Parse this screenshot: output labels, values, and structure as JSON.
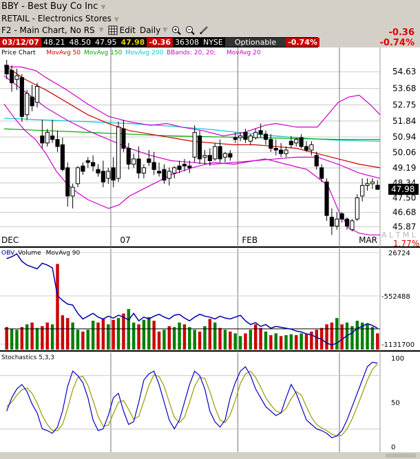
{
  "header": {
    "title": "BBY - Best Buy Co Inc",
    "sector": "RETAIL - Electronics Stores",
    "chart_label": "F2 - Main Chart, No RS",
    "edit_label": "Edit",
    "period_label": "Daily"
  },
  "quote": {
    "date": "03/12/07",
    "open": "48.21",
    "high": "48.50",
    "low": "47.95",
    "last": "47.98",
    "change": "-0.36",
    "volume": "36308",
    "exchange": "NYSE",
    "optionable": "Optionable",
    "pct": "-0.74%",
    "big_change": "-0.36",
    "big_pct": "-0.74%"
  },
  "colors": {
    "up": "#008000",
    "down": "#cc0000",
    "ma50": "#cc0000",
    "ma150": "#00aa00",
    "ma200": "#00cccc",
    "bbands": "#cc00cc",
    "obv": "#0000aa",
    "stoch_k": "#0000cc",
    "stoch_d": "#999900"
  },
  "chart_data": [
    {
      "type": "candlestick",
      "panel": "price",
      "legend": [
        {
          "label": "Price Chart",
          "color": "#000000"
        },
        {
          "label": "MovAvg 50",
          "color": "#cc0000"
        },
        {
          "label": "MovAvg 150",
          "color": "#00aa00"
        },
        {
          "label": "MovAvg 200",
          "color": "#00cccc"
        },
        {
          "label": "BBands: 20, 20;",
          "color": "#cc00cc"
        },
        {
          "label": "MovAvg 20",
          "color": "#cc00cc"
        }
      ],
      "y_ticks": [
        54.63,
        53.68,
        52.75,
        51.84,
        50.94,
        50.06,
        49.19,
        48.34,
        47.5,
        46.68,
        45.87
      ],
      "current_price_label": "47.98",
      "x_labels": [
        "DEC",
        "07",
        "FEB",
        "MAR"
      ],
      "side_note": "1.77%",
      "side_letters": "A L T M L",
      "ylim": [
        45.3,
        55.3
      ],
      "candles": [
        [
          55.0,
          55.3,
          54.2,
          54.5
        ],
        [
          54.7,
          55.0,
          53.5,
          54.0
        ],
        [
          54.2,
          54.8,
          53.6,
          54.4
        ],
        [
          54.3,
          54.5,
          51.8,
          52.1
        ],
        [
          52.2,
          53.6,
          51.9,
          53.4
        ],
        [
          53.2,
          53.9,
          52.4,
          52.7
        ],
        [
          52.9,
          54.0,
          52.6,
          53.8
        ],
        [
          51.0,
          51.9,
          50.3,
          50.6
        ],
        [
          50.6,
          51.4,
          50.4,
          51.2
        ],
        [
          51.0,
          51.9,
          50.6,
          50.8
        ],
        [
          50.8,
          51.3,
          50.1,
          50.4
        ],
        [
          50.5,
          50.9,
          49.0,
          49.1
        ],
        [
          49.2,
          49.5,
          47.0,
          47.6
        ],
        [
          47.6,
          48.3,
          46.9,
          48.1
        ],
        [
          48.3,
          49.3,
          48.1,
          49.2
        ],
        [
          49.3,
          49.5,
          48.8,
          49.0
        ],
        [
          49.6,
          49.8,
          49.2,
          49.5
        ],
        [
          49.5,
          49.9,
          49.0,
          49.3
        ],
        [
          49.1,
          49.4,
          48.7,
          48.9
        ],
        [
          49.0,
          49.6,
          48.1,
          48.4
        ],
        [
          48.6,
          49.2,
          48.3,
          49.0
        ],
        [
          49.2,
          49.8,
          48.1,
          48.5
        ],
        [
          48.6,
          51.8,
          48.4,
          51.5
        ],
        [
          51.4,
          51.9,
          50.1,
          50.3
        ],
        [
          50.3,
          50.6,
          49.1,
          49.4
        ],
        [
          49.4,
          50.0,
          49.2,
          49.7
        ],
        [
          49.7,
          50.4,
          48.6,
          48.9
        ],
        [
          48.9,
          49.4,
          48.6,
          49.2
        ],
        [
          49.7,
          50.2,
          49.3,
          49.5
        ],
        [
          49.5,
          50.1,
          48.8,
          49.1
        ],
        [
          49.0,
          49.5,
          48.7,
          48.9
        ],
        [
          49.1,
          49.4,
          48.3,
          48.5
        ],
        [
          48.6,
          49.2,
          48.2,
          49.0
        ],
        [
          48.9,
          49.3,
          48.6,
          49.2
        ],
        [
          49.3,
          49.6,
          48.9,
          49.1
        ],
        [
          49.4,
          49.7,
          49.0,
          49.3
        ],
        [
          49.3,
          49.6,
          48.9,
          49.2
        ],
        [
          49.8,
          51.6,
          49.5,
          51.2
        ],
        [
          51.0,
          51.3,
          49.4,
          49.7
        ],
        [
          49.8,
          50.2,
          49.4,
          49.9
        ],
        [
          49.9,
          50.3,
          49.3,
          49.6
        ],
        [
          49.7,
          50.6,
          49.6,
          50.4
        ],
        [
          50.4,
          50.8,
          49.5,
          49.7
        ],
        [
          49.8,
          50.1,
          49.5,
          50.0
        ],
        [
          50.0,
          50.2,
          49.6,
          49.8
        ],
        [
          50.9,
          51.2,
          50.6,
          50.8
        ],
        [
          50.9,
          51.2,
          50.7,
          51.0
        ],
        [
          51.2,
          51.4,
          50.6,
          50.8
        ],
        [
          50.7,
          51.1,
          50.5,
          51.0
        ],
        [
          50.9,
          51.4,
          50.8,
          51.2
        ],
        [
          51.3,
          51.7,
          50.9,
          51.1
        ],
        [
          51.1,
          51.3,
          50.5,
          50.8
        ],
        [
          50.8,
          51.1,
          50.1,
          50.3
        ],
        [
          50.3,
          50.8,
          49.9,
          50.2
        ],
        [
          50.2,
          50.6,
          49.8,
          50.0
        ],
        [
          50.0,
          50.4,
          49.8,
          50.2
        ],
        [
          50.7,
          51.0,
          50.3,
          50.5
        ],
        [
          50.6,
          50.9,
          50.4,
          50.8
        ],
        [
          50.9,
          51.1,
          50.3,
          50.4
        ],
        [
          50.4,
          50.7,
          50.1,
          50.2
        ],
        [
          50.2,
          50.7,
          49.9,
          50.5
        ],
        [
          49.9,
          50.1,
          49.1,
          49.3
        ],
        [
          49.2,
          49.4,
          48.4,
          48.6
        ],
        [
          48.4,
          48.6,
          46.2,
          46.5
        ],
        [
          46.4,
          46.9,
          45.4,
          45.9
        ],
        [
          45.9,
          46.7,
          45.7,
          46.3
        ],
        [
          46.6,
          46.7,
          46.1,
          46.3
        ],
        [
          46.3,
          46.4,
          45.7,
          45.9
        ],
        [
          45.7,
          46.3,
          45.6,
          46.2
        ],
        [
          46.3,
          47.7,
          46.2,
          47.5
        ],
        [
          47.6,
          48.6,
          47.3,
          48.2
        ],
        [
          48.2,
          48.6,
          47.9,
          48.3
        ],
        [
          48.3,
          48.6,
          48.0,
          48.4
        ],
        [
          48.21,
          48.5,
          47.95,
          47.98
        ]
      ],
      "ma50": [
        [
          0,
          55.0
        ],
        [
          10,
          54.2
        ],
        [
          20,
          53.6
        ],
        [
          30,
          52.9
        ],
        [
          40,
          52.2
        ],
        [
          50,
          51.7
        ],
        [
          60,
          51.3
        ],
        [
          70,
          51.1
        ],
        [
          80,
          50.9
        ],
        [
          90,
          50.7
        ],
        [
          100,
          50.6
        ],
        [
          110,
          50.5
        ],
        [
          120,
          50.5
        ],
        [
          130,
          50.4
        ],
        [
          140,
          50.3
        ],
        [
          150,
          50.0
        ],
        [
          160,
          49.7
        ],
        [
          170,
          49.4
        ],
        [
          180,
          49.2
        ]
      ],
      "ma150": [
        [
          0,
          51.4
        ],
        [
          20,
          51.3
        ],
        [
          40,
          51.2
        ],
        [
          60,
          51.1
        ],
        [
          80,
          51.0
        ],
        [
          100,
          50.95
        ],
        [
          120,
          50.9
        ],
        [
          140,
          50.85
        ],
        [
          160,
          50.8
        ],
        [
          180,
          50.8
        ]
      ],
      "ma200": [
        [
          0,
          52.0
        ],
        [
          20,
          51.9
        ],
        [
          40,
          51.8
        ],
        [
          60,
          51.7
        ],
        [
          80,
          51.55
        ],
        [
          100,
          51.35
        ],
        [
          120,
          51.1
        ],
        [
          140,
          50.9
        ],
        [
          160,
          50.75
        ],
        [
          180,
          50.7
        ]
      ],
      "bb_upper": [
        [
          0,
          54.9
        ],
        [
          8,
          54.9
        ],
        [
          15,
          54.7
        ],
        [
          20,
          54.3
        ],
        [
          30,
          53.6
        ],
        [
          40,
          52.8
        ],
        [
          50,
          52.1
        ],
        [
          60,
          51.8
        ],
        [
          70,
          51.6
        ],
        [
          78,
          51.7
        ],
        [
          85,
          51.5
        ],
        [
          95,
          51.3
        ],
        [
          105,
          51.0
        ],
        [
          115,
          51.2
        ],
        [
          125,
          51.6
        ],
        [
          130,
          51.7
        ],
        [
          140,
          51.5
        ],
        [
          150,
          51.5
        ],
        [
          155,
          52.2
        ],
        [
          160,
          52.9
        ],
        [
          165,
          53.2
        ],
        [
          170,
          53.3
        ],
        [
          175,
          52.8
        ],
        [
          180,
          52.2
        ]
      ],
      "bb_lower": [
        [
          0,
          52.8
        ],
        [
          5,
          52.0
        ],
        [
          10,
          51.3
        ],
        [
          15,
          50.8
        ],
        [
          20,
          50.0
        ],
        [
          25,
          49.0
        ],
        [
          30,
          48.3
        ],
        [
          35,
          47.8
        ],
        [
          40,
          47.4
        ],
        [
          50,
          46.9
        ],
        [
          55,
          47.1
        ],
        [
          60,
          47.6
        ],
        [
          70,
          48.2
        ],
        [
          80,
          48.8
        ],
        [
          90,
          49.2
        ],
        [
          100,
          49.5
        ],
        [
          110,
          49.4
        ],
        [
          120,
          49.6
        ],
        [
          125,
          49.7
        ],
        [
          135,
          49.4
        ],
        [
          145,
          49.1
        ],
        [
          155,
          48.2
        ],
        [
          160,
          46.8
        ],
        [
          165,
          45.8
        ],
        [
          170,
          45.5
        ],
        [
          175,
          45.4
        ],
        [
          180,
          45.4
        ]
      ],
      "ma20": [
        [
          0,
          54.4
        ],
        [
          10,
          53.5
        ],
        [
          20,
          52.6
        ],
        [
          30,
          51.9
        ],
        [
          40,
          51.3
        ],
        [
          50,
          50.8
        ],
        [
          60,
          50.3
        ],
        [
          70,
          49.9
        ],
        [
          80,
          49.6
        ],
        [
          90,
          49.5
        ],
        [
          100,
          49.4
        ],
        [
          110,
          49.5
        ],
        [
          120,
          49.6
        ],
        [
          130,
          49.7
        ],
        [
          140,
          49.8
        ],
        [
          150,
          49.8
        ],
        [
          160,
          49.4
        ],
        [
          170,
          48.9
        ],
        [
          180,
          48.6
        ]
      ]
    },
    {
      "type": "bar+line",
      "panel": "obv",
      "legend": [
        {
          "label": "OBV",
          "color": "#0000aa"
        },
        {
          "label": "Volume",
          "color": "#000000"
        },
        {
          "label": "MovAvg 90",
          "color": "#000000"
        }
      ],
      "y_ticks": [
        "26724",
        "-552488",
        "-1131700"
      ],
      "volume": [
        0.25,
        0.23,
        0.22,
        0.25,
        0.28,
        0.3,
        0.24,
        0.26,
        0.3,
        0.28,
        0.95,
        0.38,
        0.35,
        0.3,
        0.22,
        0.2,
        0.22,
        0.32,
        0.3,
        0.34,
        0.28,
        0.33,
        0.35,
        0.4,
        0.45,
        0.3,
        0.28,
        0.33,
        0.36,
        0.32,
        0.2,
        0.22,
        0.26,
        0.25,
        0.3,
        0.28,
        0.25,
        0.22,
        0.2,
        0.26,
        0.34,
        0.3,
        0.24,
        0.22,
        0.2,
        0.18,
        0.15,
        0.18,
        0.22,
        0.28,
        0.24,
        0.2,
        0.16,
        0.18,
        0.15,
        0.16,
        0.17,
        0.16,
        0.18,
        0.17,
        0.2,
        0.22,
        0.24,
        0.28,
        0.3,
        0.35,
        0.28,
        0.3,
        0.26,
        0.32,
        0.3,
        0.28,
        0.25,
        0.18
      ],
      "volume_up": [
        0,
        1,
        1,
        0,
        1,
        0,
        1,
        0,
        0,
        1,
        0,
        0,
        0,
        1,
        1,
        0,
        1,
        1,
        0,
        0,
        1,
        0,
        1,
        0,
        1,
        1,
        0,
        1,
        1,
        0,
        0,
        1,
        0,
        1,
        1,
        0,
        1,
        1,
        0,
        1,
        0,
        1,
        0,
        1,
        0,
        1,
        1,
        0,
        1,
        0,
        0,
        1,
        0,
        1,
        0,
        1,
        1,
        0,
        1,
        0,
        0,
        0,
        0,
        0,
        0,
        1,
        0,
        1,
        1,
        1,
        1,
        1,
        1,
        0
      ],
      "obv": [
        0.95,
        0.97,
        1.0,
        0.92,
        0.88,
        0.86,
        0.84,
        0.9,
        0.88,
        0.85,
        0.55,
        0.5,
        0.46,
        0.45,
        0.36,
        0.3,
        0.33,
        0.36,
        0.32,
        0.3,
        0.33,
        0.31,
        0.34,
        0.32,
        0.29,
        0.36,
        0.28,
        0.32,
        0.3,
        0.33,
        0.35,
        0.32,
        0.3,
        0.34,
        0.35,
        0.31,
        0.28,
        0.32,
        0.35,
        0.33,
        0.32,
        0.3,
        0.33,
        0.31,
        0.3,
        0.32,
        0.34,
        0.28,
        0.24,
        0.26,
        0.22,
        0.24,
        0.2,
        0.22,
        0.21,
        0.2,
        0.19,
        0.17,
        0.16,
        0.14,
        0.13,
        0.1,
        0.08,
        0.04,
        0.02,
        0.04,
        0.08,
        0.12,
        0.15,
        0.2,
        0.22,
        0.25,
        0.23,
        0.2
      ],
      "ma90": [
        0.23,
        0.23,
        0.23,
        0.23,
        0.23,
        0.23,
        0.23,
        0.23,
        0.23,
        0.23,
        0.23,
        0.23
      ]
    },
    {
      "type": "line",
      "panel": "stochastics",
      "legend": [
        {
          "label": "Stochastics 5,3,3",
          "color": "#000000"
        }
      ],
      "y_ticks": [
        "100",
        "50",
        "0"
      ],
      "k": [
        40,
        55,
        65,
        70,
        62,
        48,
        38,
        20,
        18,
        15,
        22,
        40,
        68,
        85,
        80,
        72,
        55,
        30,
        18,
        20,
        35,
        55,
        60,
        40,
        25,
        28,
        50,
        75,
        82,
        85,
        70,
        50,
        30,
        20,
        30,
        50,
        70,
        85,
        80,
        65,
        40,
        28,
        22,
        30,
        55,
        72,
        85,
        90,
        80,
        65,
        55,
        45,
        40,
        35,
        38,
        55,
        70,
        60,
        45,
        30,
        25,
        20,
        18,
        15,
        10,
        12,
        18,
        30,
        45,
        60,
        75,
        90,
        95,
        94
      ],
      "d": [
        45,
        50,
        58,
        64,
        66,
        60,
        49,
        35,
        25,
        18,
        18,
        25,
        43,
        64,
        78,
        79,
        69,
        52,
        34,
        23,
        24,
        37,
        50,
        52,
        42,
        31,
        34,
        51,
        69,
        81,
        79,
        68,
        50,
        33,
        27,
        33,
        50,
        68,
        78,
        77,
        62,
        44,
        30,
        27,
        36,
        52,
        71,
        82,
        85,
        78,
        67,
        55,
        47,
        40,
        38,
        43,
        54,
        62,
        58,
        45,
        33,
        25,
        21,
        18,
        14,
        12,
        13,
        20,
        31,
        45,
        60,
        75,
        87,
        93
      ]
    }
  ]
}
